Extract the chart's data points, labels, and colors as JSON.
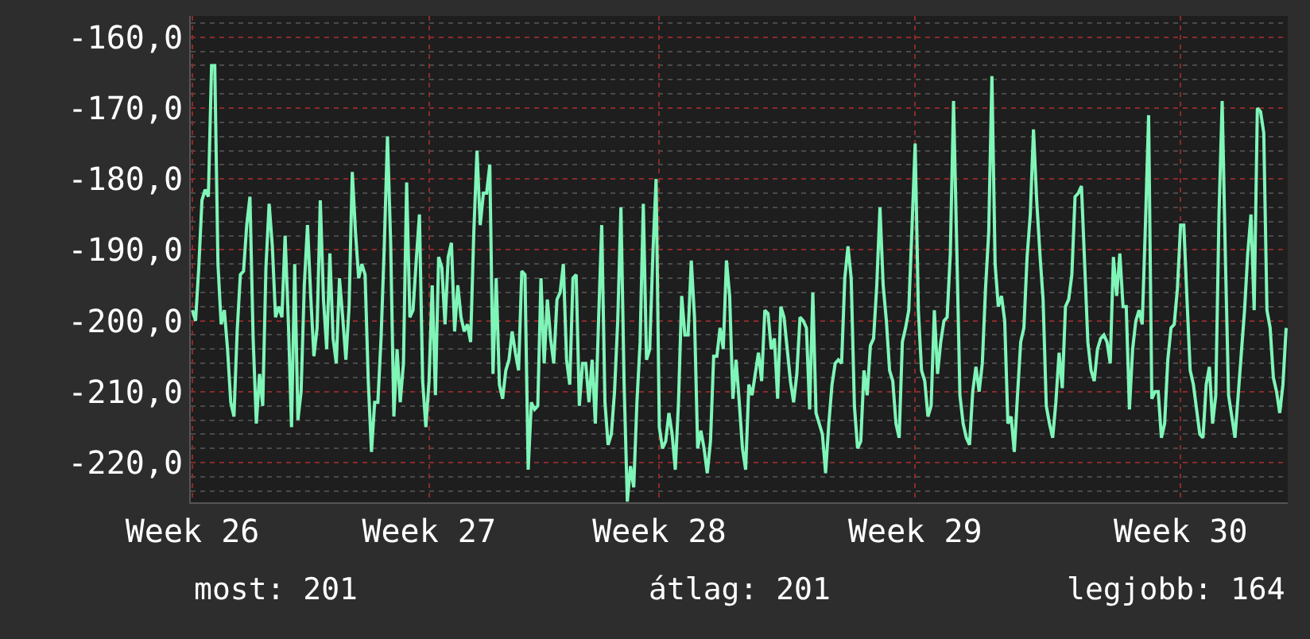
{
  "chart_data": {
    "type": "line",
    "categories": [
      "Week 26",
      null,
      null,
      null,
      null,
      null,
      null,
      null,
      null,
      null,
      null,
      null,
      null,
      null,
      null,
      null,
      null,
      null,
      null,
      null,
      null,
      null,
      null,
      null,
      null,
      null,
      null,
      null,
      null,
      null,
      null,
      null,
      null,
      null,
      null,
      null,
      null,
      null,
      null,
      null,
      null,
      null,
      null,
      null,
      null,
      null,
      null,
      null,
      null,
      null,
      null,
      null,
      null,
      null,
      null,
      null,
      null,
      null,
      null,
      null,
      null,
      null,
      null,
      null,
      null,
      null,
      null,
      null,
      null,
      null,
      null,
      null,
      null,
      null,
      "Week 27",
      null,
      null,
      null,
      null,
      null,
      null,
      null,
      null,
      null,
      null,
      null,
      null,
      null,
      null,
      null,
      null,
      null,
      null,
      null,
      null,
      null,
      null,
      null,
      null,
      null,
      null,
      null,
      null,
      null,
      null,
      null,
      null,
      null,
      null,
      null,
      null,
      null,
      null,
      null,
      null,
      null,
      null,
      null,
      null,
      null,
      null,
      null,
      null,
      null,
      null,
      null,
      null,
      null,
      null,
      null,
      null,
      null,
      null,
      null,
      null,
      null,
      null,
      null,
      null,
      null,
      null,
      null,
      null,
      null,
      null,
      null,
      "Week 28",
      null,
      null,
      null,
      null,
      null,
      null,
      null,
      null,
      null,
      null,
      null,
      null,
      null,
      null,
      null,
      null,
      null,
      null,
      null,
      null,
      null,
      null,
      null,
      null,
      null,
      null,
      null,
      null,
      null,
      null,
      null,
      null,
      null,
      null,
      null,
      null,
      null,
      null,
      null,
      null,
      null,
      null,
      null,
      null,
      null,
      null,
      null,
      null,
      null,
      null,
      null,
      null,
      null,
      null,
      null,
      null,
      null,
      null,
      null,
      null,
      null,
      null,
      null,
      null,
      null,
      null,
      null,
      null,
      null,
      null,
      null,
      null,
      null,
      null,
      null,
      null,
      null,
      null,
      null,
      "Week 29",
      null,
      null,
      null,
      null,
      null,
      null,
      null,
      null,
      null,
      null,
      null,
      null,
      null,
      null,
      null,
      null,
      null,
      null,
      null,
      null,
      null,
      null,
      null,
      null,
      null,
      null,
      null,
      null,
      null,
      null,
      null,
      null,
      null,
      null,
      null,
      null,
      null,
      null,
      null,
      null,
      null,
      null,
      null,
      null,
      null,
      null,
      null,
      null,
      null,
      null,
      null,
      null,
      null,
      null,
      null,
      null,
      null,
      null,
      null,
      null,
      null,
      null,
      null,
      null,
      null,
      null,
      null,
      null,
      null,
      null,
      null,
      null,
      null,
      null,
      null,
      null,
      null,
      null,
      null,
      null,
      null,
      null,
      "Week 30",
      null,
      null,
      null,
      null,
      null,
      null,
      null,
      null,
      null,
      null,
      null,
      null,
      null,
      null,
      null,
      null,
      null,
      null,
      null,
      null,
      null,
      null,
      null,
      null,
      null,
      null,
      null,
      null,
      null,
      null,
      null,
      null,
      null
    ],
    "series": [
      {
        "color": "#7ff5b8",
        "values": [
          -198.5,
          -200,
          -192.5,
          -183,
          -181.5,
          -182.5,
          -164,
          -164,
          -192,
          -200.5,
          -198.5,
          -204,
          -211.5,
          -213.5,
          -201.5,
          -193.5,
          -193,
          -186.5,
          -182.5,
          -202.5,
          -214.5,
          -207.5,
          -212,
          -192.5,
          -183.5,
          -189.5,
          -199.5,
          -198,
          -199.5,
          -188,
          -200,
          -215,
          -192,
          -214,
          -210,
          -195,
          -186.5,
          -196.5,
          -205,
          -201,
          -183,
          -197,
          -204,
          -190.5,
          -202.5,
          -206,
          -194,
          -199.5,
          -205.5,
          -198,
          -179,
          -187.5,
          -194,
          -192,
          -193.5,
          -208.5,
          -218.5,
          -211.5,
          -211.5,
          -202.5,
          -189.5,
          -174,
          -189,
          -213.5,
          -204,
          -211.5,
          -206,
          -180.5,
          -199.5,
          -198.5,
          -191.5,
          -185,
          -208.5,
          -215,
          -208.5,
          -195,
          -210.5,
          -191,
          -192.5,
          -200.5,
          -191,
          -189,
          -201.5,
          -195,
          -199.5,
          -201.5,
          -200.5,
          -203,
          -187.5,
          -176,
          -186.5,
          -182,
          -182,
          -178,
          -207.5,
          -194,
          -209,
          -211,
          -207,
          -205.5,
          -201.5,
          -204.5,
          -207,
          -193,
          -193.5,
          -221,
          -211.5,
          -212.5,
          -212,
          -194,
          -206,
          -197,
          -202.5,
          -206,
          -197,
          -196,
          -192,
          -205.5,
          -209,
          -194,
          -193.5,
          -212,
          -206,
          -206,
          -211.5,
          -205.5,
          -214.5,
          -200,
          -186.5,
          -211.5,
          -217.5,
          -216,
          -210,
          -200,
          -184,
          -209,
          -225.5,
          -220.5,
          -223.5,
          -211.5,
          -203,
          -183.5,
          -205.5,
          -204,
          -190.5,
          -180,
          -215,
          -218,
          -217,
          -213,
          -216,
          -221,
          -211.5,
          -196.5,
          -202,
          -202,
          -191.5,
          -199.5,
          -218,
          -215.5,
          -218,
          -221.5,
          -217,
          -205,
          -205,
          -201,
          -204,
          -191.5,
          -196.5,
          -211,
          -205.5,
          -211.5,
          -218,
          -221,
          -209,
          -210.5,
          -207.5,
          -204.5,
          -208.5,
          -198.5,
          -199,
          -204,
          -202.5,
          -211,
          -198,
          -199.5,
          -204,
          -208.5,
          -211.5,
          -207.5,
          -199.5,
          -200,
          -201,
          -212.5,
          -196,
          -213,
          -214.5,
          -216,
          -221.5,
          -214.5,
          -209,
          -206,
          -205.5,
          -206,
          -194,
          -189.5,
          -194,
          -212,
          -218,
          -217,
          -207,
          -210.5,
          -203.5,
          -202.5,
          -195,
          -184,
          -195,
          -200,
          -207,
          -208.5,
          -214.5,
          -216.5,
          -203,
          -201,
          -198.5,
          -187,
          -175,
          -198.5,
          -207,
          -208.5,
          -213.5,
          -212,
          -198.5,
          -207.5,
          -203,
          -200,
          -199.5,
          -190.5,
          -169,
          -189.5,
          -210.5,
          -214.5,
          -216.5,
          -217.5,
          -210,
          -206.5,
          -210,
          -206,
          -195.5,
          -187.5,
          -165.5,
          -192,
          -198,
          -196.5,
          -200,
          -214.5,
          -213.5,
          -218.5,
          -210.5,
          -203,
          -201,
          -191,
          -185,
          -173,
          -183,
          -190.5,
          -197,
          -212,
          -214.5,
          -216.5,
          -211.5,
          -204.5,
          -209.5,
          -198,
          -197,
          -193.5,
          -182.5,
          -182,
          -181,
          -192,
          -203,
          -207,
          -208.5,
          -204,
          -202.5,
          -202,
          -203,
          -206,
          -191,
          -196.5,
          -190.5,
          -198,
          -198,
          -212.5,
          -204,
          -200,
          -198.5,
          -200.5,
          -186.5,
          -171,
          -211,
          -210,
          -210,
          -216.5,
          -214.5,
          -205.5,
          -201,
          -200.5,
          -195.5,
          -186.5,
          -186.5,
          -197,
          -207,
          -209,
          -212.5,
          -216,
          -216.5,
          -209,
          -206.5,
          -214.5,
          -210.5,
          -185,
          -169,
          -191,
          -210.5,
          -213.5,
          -216.5,
          -210.5,
          -204.5,
          -198.5,
          -190.5,
          -185,
          -198.5,
          -170,
          -170.5,
          -173.5,
          -198.5,
          -201,
          -208,
          -210,
          -213,
          -209,
          -201
        ]
      }
    ],
    "ylim": [
      -225.6,
      -157
    ],
    "yticks": [
      {
        "value": -220,
        "label": "-220,0"
      },
      {
        "value": -210,
        "label": "-210,0"
      },
      {
        "value": -200,
        "label": "-200,0"
      },
      {
        "value": -190,
        "label": "-190,0"
      },
      {
        "value": -180,
        "label": "-180,0"
      },
      {
        "value": -170,
        "label": "-170,0"
      },
      {
        "value": -160,
        "label": "-160,0"
      }
    ],
    "grid": true,
    "marker": "none",
    "line_style": "solid",
    "annotations": [
      "most: 201",
      "átlag: 201",
      "legjobb: 164"
    ]
  }
}
